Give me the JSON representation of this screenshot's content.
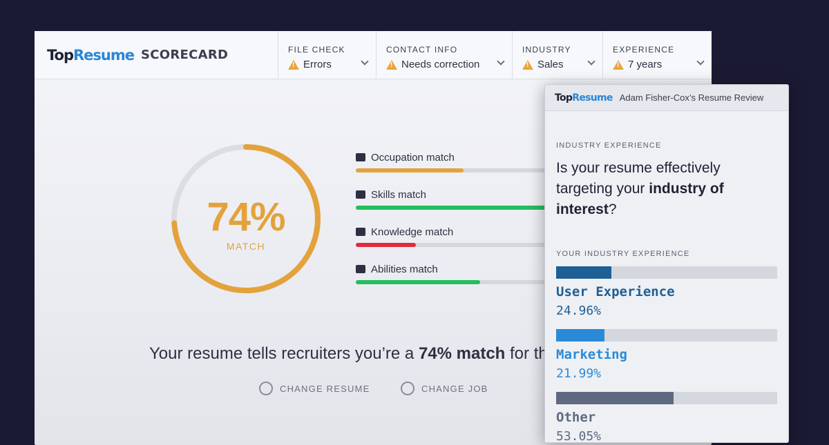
{
  "header": {
    "logo_top": "Top",
    "logo_resume": "Resume",
    "title": "SCORECARD",
    "items": [
      {
        "label": "FILE CHECK",
        "value": "Errors"
      },
      {
        "label": "CONTACT INFO",
        "value": "Needs correction"
      },
      {
        "label": "INDUSTRY",
        "value": "Sales"
      },
      {
        "label": "EXPERIENCE",
        "value": "7 years"
      }
    ]
  },
  "gauge": {
    "percent_text": "74%",
    "sub": "MATCH",
    "value": 0.74,
    "color": "#e3a23c"
  },
  "matches": [
    {
      "label": "Occupation match",
      "icon": "briefcase-icon",
      "fill": 0.52,
      "color": "#e3a23c"
    },
    {
      "label": "Skills match",
      "icon": "bar-chart-icon",
      "fill": 0.92,
      "color": "#22bf5b"
    },
    {
      "label": "Knowledge match",
      "icon": "puzzle-icon",
      "fill": 0.29,
      "color": "#e22a3b"
    },
    {
      "label": "Abilities match",
      "icon": "wrench-icon",
      "fill": 0.6,
      "color": "#22bf5b"
    }
  ],
  "summary": {
    "before": "Your resume tells recruiters you’re a ",
    "bold": "74% match",
    "after": " for th"
  },
  "actions": {
    "change_resume": "CHANGE RESUME",
    "change_job": "CHANGE JOB"
  },
  "panel": {
    "logo_top": "Top",
    "logo_resume": "Resume",
    "title": "Adam Fisher-Cox’s Resume Review",
    "section_label": "INDUSTRY EXPERIENCE",
    "question_a": "Is your resume effectively targeting your ",
    "question_bold": "industry of interest",
    "question_b": "?",
    "list_label": "YOUR INDUSTRY EXPERIENCE",
    "industries": [
      {
        "name": "User Experience",
        "pct": "24.96%",
        "fill": 0.2496,
        "color": "#1e5f95"
      },
      {
        "name": "Marketing",
        "pct": "21.99%",
        "fill": 0.2199,
        "color": "#2a8ad8"
      },
      {
        "name": "Other",
        "pct": "53.05%",
        "fill": 0.5305,
        "color": "#5f6a80"
      }
    ]
  }
}
